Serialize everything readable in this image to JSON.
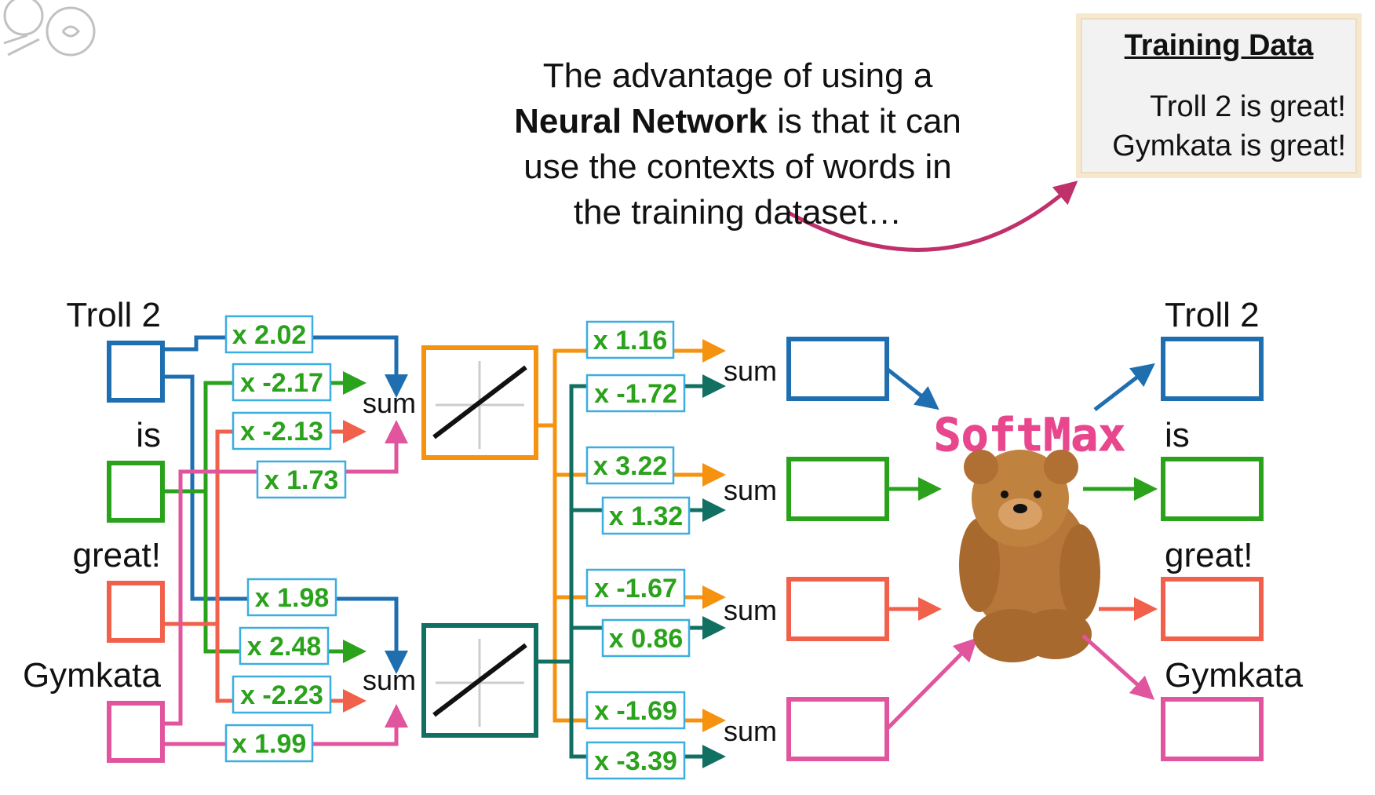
{
  "headline": {
    "pre": "The advantage of using a",
    "bold": "Neural Network",
    "post1": " is that it can",
    "line3": "use the contexts of words in",
    "line4": "the training dataset…"
  },
  "training_data": {
    "title": "Training Data",
    "lines": [
      "Troll 2 is great!",
      "Gymkata is great!"
    ]
  },
  "inputs": [
    "Troll 2",
    "is",
    "great!",
    "Gymkata"
  ],
  "outputs": [
    "Troll 2",
    "is",
    "great!",
    "Gymkata"
  ],
  "sum_label": "sum",
  "softmax_label": "SoftMax",
  "input_weights_top": [
    "x 2.02",
    "x -2.17",
    "x -2.13",
    "x 1.73"
  ],
  "input_weights_bottom": [
    "x 1.98",
    "x 2.48",
    "x -2.23",
    "x 1.99"
  ],
  "output_weights": [
    [
      "x 1.16",
      "x -1.72"
    ],
    [
      "x 3.22",
      "x 1.32"
    ],
    [
      "x -1.67",
      "x 0.86"
    ],
    [
      "x -1.69",
      "x -3.39"
    ]
  ],
  "colors": {
    "blue": "#1f6fb0",
    "green": "#2aa21c",
    "red": "#f0604a",
    "pink": "#e0559d",
    "orange": "#f5920f",
    "teal": "#127063",
    "weight_text": "#2aa21c",
    "weight_border": "#3aaee0",
    "softmax": "#e8478e",
    "arrow_arc": "#c0306a"
  },
  "icons": {
    "logo": "statquest-logo-icon",
    "bear": "teddy-bear-icon"
  }
}
